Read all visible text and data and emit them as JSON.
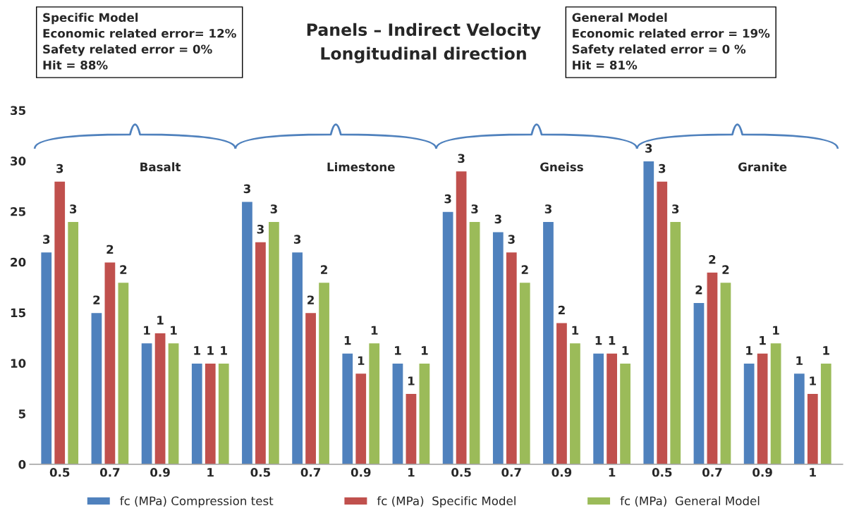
{
  "chart_data": {
    "type": "bar",
    "title": "Panels – Indirect Velocity\nLongitudinal direction",
    "categories": [
      "0.5",
      "0.7",
      "0.9",
      "1",
      "0.5",
      "0.7",
      "0.9",
      "1",
      "0.5",
      "0.7",
      "0.9",
      "1",
      "0.5",
      "0.7",
      "0.9",
      "1"
    ],
    "series": [
      {
        "name": "fc (MPa) Compression test",
        "color": "#4f81bd",
        "values": [
          21,
          15,
          12,
          10,
          26,
          21,
          11,
          10,
          25,
          23,
          24,
          11,
          30,
          16,
          10,
          9
        ]
      },
      {
        "name": "fc (MPa)  Specific Model",
        "color": "#c0504d",
        "values": [
          28,
          20,
          13,
          10,
          22,
          15,
          9,
          7,
          29,
          21,
          14,
          11,
          28,
          19,
          11,
          7
        ]
      },
      {
        "name": "fc (MPa)  General Model",
        "color": "#9bbb59",
        "values": [
          24,
          18,
          12,
          10,
          24,
          18,
          12,
          10,
          24,
          18,
          12,
          10,
          24,
          18,
          12,
          10
        ]
      }
    ],
    "annotations": [
      "Specific Model\nEconomic related error= 12%\nSafety related error = 0%\nHit = 88%",
      "General Model\nEconomic related error = 19%\nSafety related error = 0 %\nHit = 81%",
      "Basalt",
      "Limestone",
      "Gneiss",
      "Granite",
      "3",
      "2",
      "1",
      "1",
      "3",
      "3",
      "1",
      "1",
      "3",
      "3",
      "3",
      "1",
      "3",
      "2",
      "1",
      "1",
      "3",
      "2",
      "1",
      "1",
      "3",
      "2",
      "1",
      "1",
      "3",
      "3",
      "2",
      "1",
      "3",
      "2",
      "1",
      "1",
      "3",
      "2",
      "1",
      "1",
      "3",
      "2",
      "1",
      "1",
      "3",
      "2",
      "1",
      "1",
      "3",
      "2",
      "1",
      "1"
    ],
    "ylim": [
      0,
      35
    ],
    "yticks": [
      0,
      5,
      10,
      15,
      20,
      25,
      30,
      35
    ],
    "grid": false,
    "legend": "bottom"
  }
}
